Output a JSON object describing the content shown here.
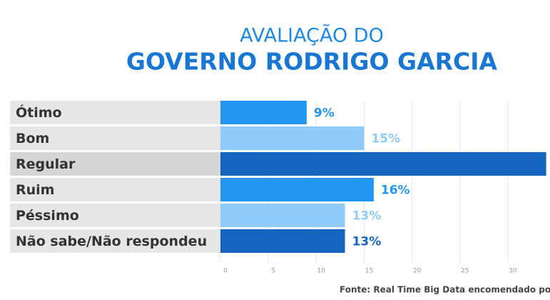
{
  "chart_data": {
    "type": "bar",
    "orientation": "horizontal",
    "title": "AVALIAÇÃO DO",
    "subtitle": "GOVERNO RODRIGO GARCIA",
    "categories": [
      "Ótimo",
      "Bom",
      "Regular",
      "Ruim",
      "Péssimo",
      "Não sabe/Não respondeu"
    ],
    "values": [
      9,
      15,
      34,
      16,
      13,
      13
    ],
    "value_labels": [
      "9%",
      "15%",
      null,
      "16%",
      "13%",
      "13%"
    ],
    "colors": [
      "#2196f3",
      "#90caf9",
      "#1565c0",
      "#2196f3",
      "#90caf9",
      "#1565c0"
    ],
    "label_colors": [
      "#2196f3",
      "#90caf9",
      "#1565c0",
      "#2196f3",
      "#90caf9",
      "#1565c0"
    ],
    "xlim": [
      0,
      34.4
    ],
    "xticks": [
      0,
      5,
      10,
      15,
      20,
      25,
      30
    ],
    "grid": true,
    "source": "Fonte: Real Time Big Data encomendado po"
  }
}
